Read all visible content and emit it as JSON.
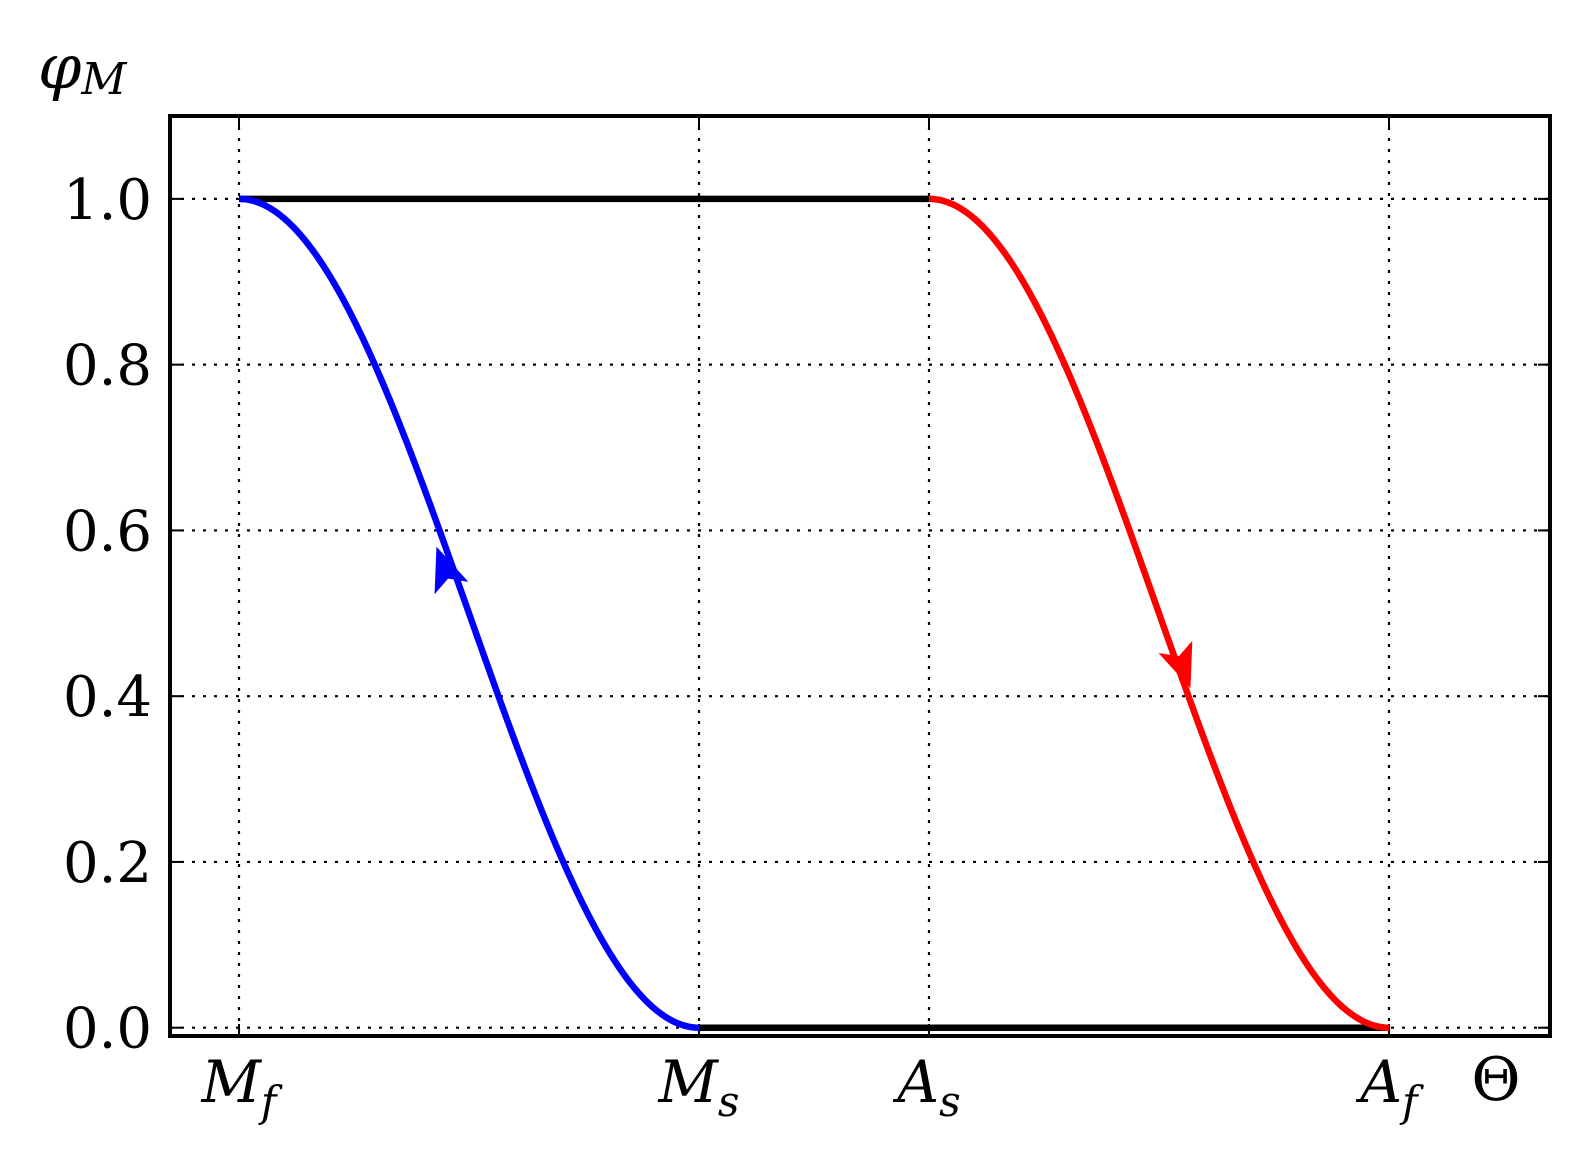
{
  "chart_data": {
    "type": "line",
    "ylabel_main": "φ",
    "ylabel_sub": "M",
    "xlabel": "Θ",
    "ylim": [
      -0.01,
      1.1
    ],
    "xlim": [
      -0.3,
      5.7
    ],
    "yticks": [
      "0.0",
      "0.2",
      "0.4",
      "0.6",
      "0.8",
      "1.0"
    ],
    "ytick_values": [
      0.0,
      0.2,
      0.4,
      0.6,
      0.8,
      1.0
    ],
    "xticks": [
      {
        "x": 0,
        "main": "M",
        "sub": "f"
      },
      {
        "x": 2,
        "main": "M",
        "sub": "s"
      },
      {
        "x": 3,
        "main": "A",
        "sub": "s"
      },
      {
        "x": 5,
        "main": "A",
        "sub": "f"
      }
    ],
    "grid": true,
    "series": [
      {
        "color": "#000000",
        "x": [
          0,
          3
        ],
        "y": [
          1,
          1
        ]
      },
      {
        "color": "#000000",
        "x": [
          2,
          5
        ],
        "y": [
          0,
          0
        ]
      },
      {
        "color": "#0000ff",
        "curve": "cosine",
        "x_start": 2,
        "x_end": 0,
        "arrow": "up"
      },
      {
        "color": "#ff0000",
        "curve": "cosine",
        "x_start": 3,
        "x_end": 5,
        "arrow": "down"
      }
    ]
  }
}
